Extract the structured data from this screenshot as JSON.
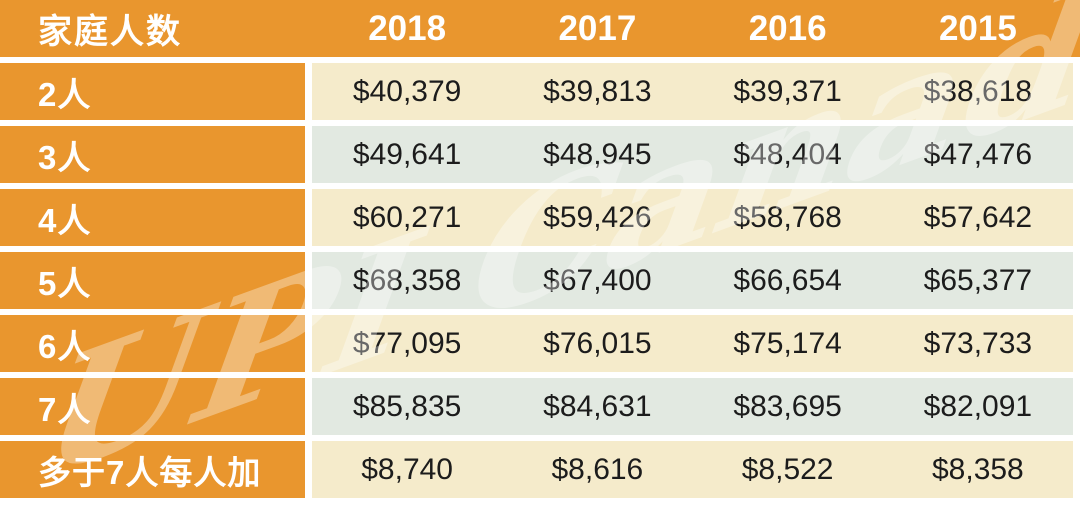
{
  "table": {
    "header": {
      "label": "家庭人数",
      "years": [
        "2018",
        "2017",
        "2016",
        "2015"
      ]
    },
    "rows": [
      {
        "label": "2人",
        "values": [
          "$40,379",
          "$39,813",
          "$39,371",
          "$38,618"
        ]
      },
      {
        "label": "3人",
        "values": [
          "$49,641",
          "$48,945",
          "$48,404",
          "$47,476"
        ]
      },
      {
        "label": "4人",
        "values": [
          "$60,271",
          "$59,426",
          "$58,768",
          "$57,642"
        ]
      },
      {
        "label": "5人",
        "values": [
          "$68,358",
          "$67,400",
          "$66,654",
          "$65,377"
        ]
      },
      {
        "label": "6人",
        "values": [
          "$77,095",
          "$76,015",
          "$75,174",
          "$73,733"
        ]
      },
      {
        "label": "7人",
        "values": [
          "$85,835",
          "$84,631",
          "$83,695",
          "$82,091"
        ]
      },
      {
        "label": "多于7人每人加",
        "values": [
          "$8,740",
          "$8,616",
          "$8,522",
          "$8,358"
        ]
      }
    ]
  },
  "watermark": {
    "text": "UPI Canada"
  },
  "colors": {
    "orange": "#E9962E",
    "green": "#E2E9E1",
    "cream": "#F5EBCB",
    "text_dark": "#1C1C1C",
    "white": "#FFFFFF"
  },
  "chart_data": {
    "type": "table",
    "title": "",
    "columns": [
      "家庭人数",
      "2018",
      "2017",
      "2016",
      "2015"
    ],
    "rows": [
      [
        "2人",
        40379,
        39813,
        39371,
        38618
      ],
      [
        "3人",
        49641,
        48945,
        48404,
        47476
      ],
      [
        "4人",
        60271,
        59426,
        58768,
        57642
      ],
      [
        "5人",
        68358,
        67400,
        66654,
        65377
      ],
      [
        "6人",
        77095,
        76015,
        75174,
        73733
      ],
      [
        "7人",
        85835,
        84631,
        83695,
        82091
      ],
      [
        "多于7人每人加",
        8740,
        8616,
        8522,
        8358
      ]
    ],
    "layout_hints": {
      "header_style": "orange band",
      "row_colors_alternate": [
        "green",
        "cream"
      ],
      "grid": "white gaps between rows"
    }
  }
}
